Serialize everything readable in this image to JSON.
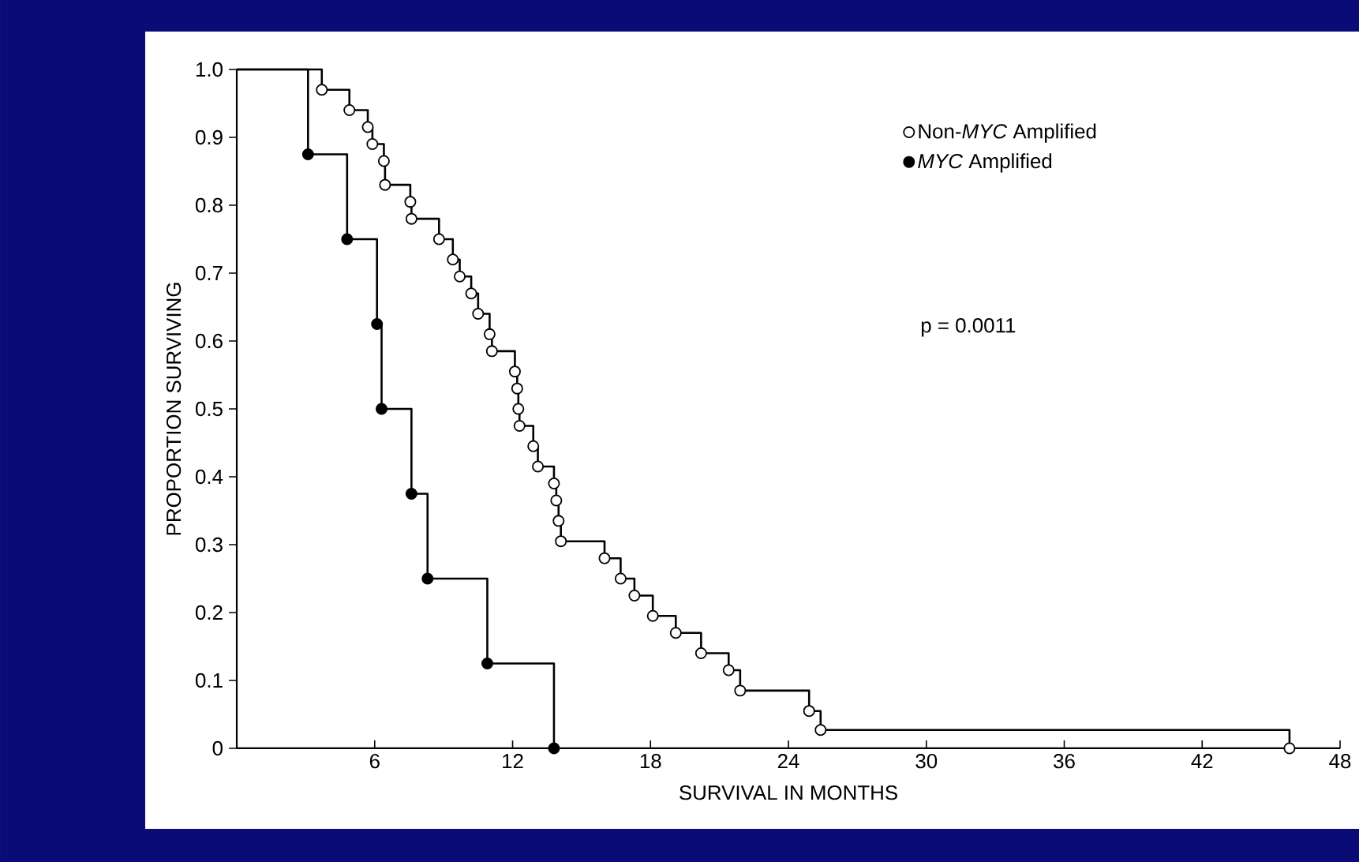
{
  "chart_data": {
    "type": "step",
    "xlabel": "SURVIVAL IN MONTHS",
    "ylabel": "PROPORTION SURVIVING",
    "xlim": [
      0,
      48
    ],
    "ylim": [
      0,
      1
    ],
    "xticks": [
      6,
      12,
      18,
      24,
      30,
      36,
      42,
      48
    ],
    "yticks": [
      0,
      0.1,
      0.2,
      0.3,
      0.4,
      0.5,
      0.6,
      0.7,
      0.8,
      0.9,
      {
        "value": 1,
        "label": "1.0"
      }
    ],
    "legend": "top right",
    "grid": false,
    "marker": "circle",
    "line_style": "solid",
    "annotations": [
      "p = 0.0011"
    ],
    "series": [
      {
        "name": "Non-*MYC* Amplified",
        "color": "#000000",
        "colors": [
          null,
          "#ffffff",
          "#ffffff",
          "#ffffff",
          "#ffffff",
          "#ffffff",
          "#ffffff",
          "#ffffff",
          "#ffffff",
          "#ffffff",
          "#ffffff",
          "#ffffff",
          "#ffffff",
          "#ffffff",
          "#ffffff",
          "#ffffff",
          "#ffffff",
          "#ffffff",
          "#ffffff",
          "#ffffff",
          "#ffffff",
          "#ffffff",
          "#ffffff",
          "#ffffff",
          "#ffffff",
          "#ffffff",
          "#ffffff",
          "#ffffff",
          "#ffffff",
          "#ffffff",
          "#ffffff",
          "#ffffff",
          "#ffffff",
          "#ffffff",
          "#ffffff",
          "#ffffff",
          "#ffffff"
        ],
        "x": [
          0,
          3.7,
          4.9,
          5.7,
          5.9,
          6.4,
          6.45,
          7.55,
          7.6,
          8.8,
          9.4,
          9.7,
          10.2,
          10.5,
          11.0,
          11.1,
          12.1,
          12.2,
          12.25,
          12.3,
          12.9,
          13.1,
          13.8,
          13.9,
          14.0,
          14.1,
          16.0,
          16.7,
          17.3,
          18.1,
          19.1,
          20.2,
          21.4,
          21.9,
          24.9,
          25.4,
          45.8
        ],
        "values": [
          1.0,
          0.97,
          0.94,
          0.915,
          0.89,
          0.865,
          0.83,
          0.805,
          0.78,
          0.75,
          0.72,
          0.695,
          0.67,
          0.64,
          0.61,
          0.585,
          0.555,
          0.53,
          0.5,
          0.475,
          0.445,
          0.415,
          0.39,
          0.365,
          0.335,
          0.305,
          0.28,
          0.25,
          0.225,
          0.195,
          0.17,
          0.14,
          0.115,
          0.085,
          0.055,
          0.027,
          0.0
        ]
      },
      {
        "name": "*MYC* Amplified",
        "color": "#000000",
        "colors": [
          null,
          "#000000",
          "#000000",
          "#000000",
          "#000000",
          "#000000",
          "#000000",
          "#000000",
          "#000000"
        ],
        "x": [
          0,
          3.1,
          4.8,
          6.1,
          6.3,
          7.6,
          8.3,
          10.9,
          13.8
        ],
        "values": [
          1.0,
          0.875,
          0.75,
          0.625,
          0.5,
          0.375,
          0.25,
          0.125,
          0.0
        ]
      }
    ]
  }
}
